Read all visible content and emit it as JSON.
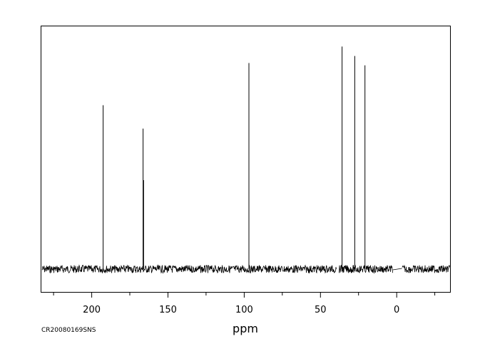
{
  "sample_id": "CR20080169SNS",
  "chart_data": {
    "type": "line",
    "title": "",
    "xlabel": "ppm",
    "ylabel": "",
    "x_reversed": true,
    "xlim": [
      233,
      -35
    ],
    "x_ticks": [
      200,
      150,
      100,
      50,
      0
    ],
    "x_minor_ticks": [
      225,
      175,
      125,
      75,
      25,
      -25
    ],
    "grid": false,
    "legend": "none",
    "series": [
      {
        "peaks": [
          {
            "ppm": 192.5,
            "intensity": 0.7
          },
          {
            "ppm": 166.3,
            "intensity": 0.6
          },
          {
            "ppm": 166.0,
            "intensity": 0.38
          },
          {
            "ppm": 96.9,
            "intensity": 0.88
          },
          {
            "ppm": 35.8,
            "intensity": 0.95
          },
          {
            "ppm": 27.5,
            "intensity": 0.91
          },
          {
            "ppm": 20.8,
            "intensity": 0.87
          }
        ]
      }
    ],
    "baseline_gaps": [
      [
        39.5,
        37.8
      ],
      [
        2.5,
        -3.5
      ]
    ],
    "line_color": "#000000"
  }
}
